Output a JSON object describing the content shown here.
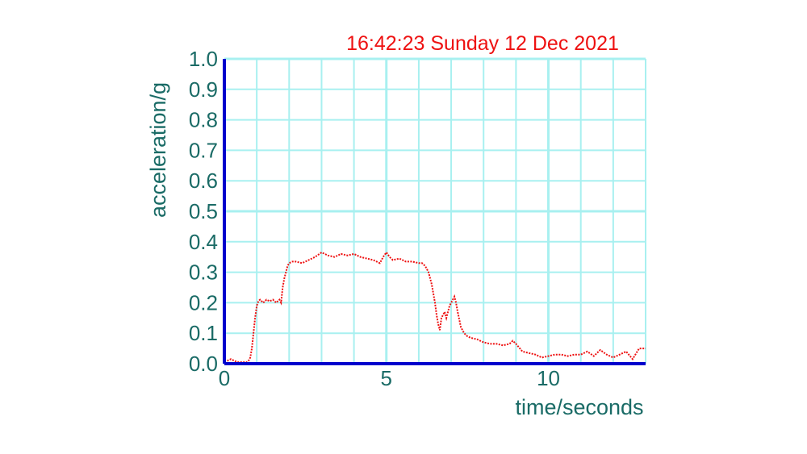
{
  "chart_data": {
    "type": "line",
    "title": "16:42:23 Sunday 12 Dec 2021",
    "xlabel": "time/seconds",
    "ylabel": "acceleration/g",
    "xlim": [
      0,
      13
    ],
    "ylim": [
      0,
      1.0
    ],
    "x_ticks": [
      0,
      5,
      10
    ],
    "x_tick_labels": [
      "0",
      "5",
      "10"
    ],
    "y_ticks": [
      0,
      0.1,
      0.2,
      0.3,
      0.4,
      0.5,
      0.6,
      0.7,
      0.8,
      0.9,
      1.0
    ],
    "y_tick_labels": [
      "0.0",
      "0.1",
      "0.2",
      "0.3",
      "0.4",
      "0.5",
      "0.6",
      "0.7",
      "0.8",
      "0.9",
      "1.0"
    ],
    "grid": true,
    "colors": {
      "series": "#ee1111",
      "axis": "#0000cc",
      "grid": "#a8f0f0",
      "text": "#1a6b66",
      "title": "#ee1111"
    },
    "series": [
      {
        "x": [
          0.0,
          0.1,
          0.2,
          0.3,
          0.4,
          0.5,
          0.6,
          0.7,
          0.75,
          0.8,
          0.85,
          0.9,
          0.95,
          1.0,
          1.05,
          1.1,
          1.2,
          1.3,
          1.4,
          1.5,
          1.6,
          1.7,
          1.75,
          1.8,
          1.85,
          1.9,
          1.95,
          2.0,
          2.1,
          2.2,
          2.4,
          2.6,
          2.8,
          3.0,
          3.1,
          3.2,
          3.4,
          3.6,
          3.8,
          4.0,
          4.2,
          4.4,
          4.6,
          4.8,
          4.9,
          5.0,
          5.1,
          5.2,
          5.4,
          5.6,
          5.8,
          6.0,
          6.1,
          6.2,
          6.3,
          6.4,
          6.45,
          6.5,
          6.55,
          6.6,
          6.65,
          6.7,
          6.75,
          6.8,
          6.85,
          6.9,
          6.95,
          7.0,
          7.05,
          7.1,
          7.15,
          7.2,
          7.3,
          7.4,
          7.5,
          7.6,
          7.8,
          8.0,
          8.2,
          8.4,
          8.6,
          8.8,
          8.9,
          9.0,
          9.2,
          9.4,
          9.6,
          9.8,
          10.0,
          10.2,
          10.4,
          10.6,
          10.8,
          11.0,
          11.2,
          11.4,
          11.6,
          11.8,
          12.0,
          12.2,
          12.4,
          12.6,
          12.8,
          13.0
        ],
        "y": [
          0.01,
          0.01,
          0.015,
          0.01,
          0.005,
          0.005,
          0.005,
          0.005,
          0.01,
          0.02,
          0.05,
          0.1,
          0.15,
          0.19,
          0.205,
          0.21,
          0.2,
          0.21,
          0.205,
          0.21,
          0.2,
          0.21,
          0.2,
          0.25,
          0.28,
          0.3,
          0.32,
          0.33,
          0.335,
          0.335,
          0.33,
          0.34,
          0.35,
          0.365,
          0.36,
          0.355,
          0.35,
          0.36,
          0.355,
          0.36,
          0.35,
          0.345,
          0.34,
          0.33,
          0.35,
          0.365,
          0.35,
          0.34,
          0.345,
          0.335,
          0.335,
          0.33,
          0.33,
          0.32,
          0.3,
          0.26,
          0.23,
          0.2,
          0.16,
          0.13,
          0.11,
          0.15,
          0.16,
          0.17,
          0.15,
          0.17,
          0.19,
          0.2,
          0.21,
          0.22,
          0.2,
          0.17,
          0.12,
          0.1,
          0.09,
          0.085,
          0.08,
          0.07,
          0.065,
          0.065,
          0.06,
          0.065,
          0.075,
          0.065,
          0.04,
          0.035,
          0.03,
          0.02,
          0.025,
          0.03,
          0.03,
          0.025,
          0.03,
          0.03,
          0.04,
          0.025,
          0.045,
          0.03,
          0.02,
          0.03,
          0.04,
          0.015,
          0.05,
          0.05
        ]
      }
    ]
  }
}
